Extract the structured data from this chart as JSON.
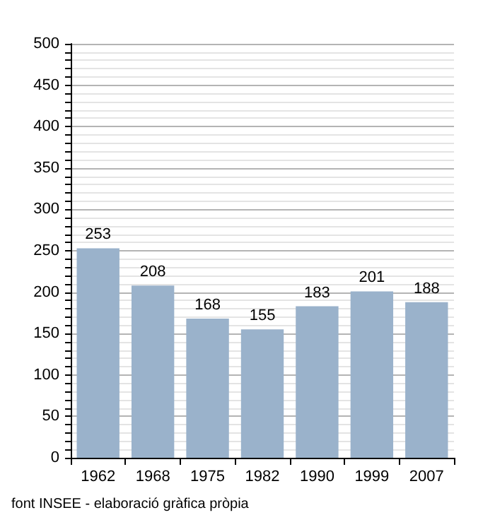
{
  "chart_data": {
    "type": "bar",
    "categories": [
      "1962",
      "1968",
      "1975",
      "1982",
      "1990",
      "1999",
      "2007"
    ],
    "values": [
      253,
      208,
      168,
      155,
      183,
      201,
      188
    ],
    "color": "#9ab2cb",
    "data_labels": true,
    "ylim": [
      0,
      500
    ],
    "yticks": [
      0,
      {
        "value": 10,
        "label": null
      },
      {
        "value": 20,
        "label": null
      },
      {
        "value": 30,
        "label": null
      },
      {
        "value": 40,
        "label": null
      },
      50,
      {
        "value": 60,
        "label": null
      },
      {
        "value": 70,
        "label": null
      },
      {
        "value": 80,
        "label": null
      },
      {
        "value": 90,
        "label": null
      },
      100,
      {
        "value": 110,
        "label": null
      },
      {
        "value": 120,
        "label": null
      },
      {
        "value": 130,
        "label": null
      },
      {
        "value": 140,
        "label": null
      },
      150,
      {
        "value": 160,
        "label": null
      },
      {
        "value": 170,
        "label": null
      },
      {
        "value": 180,
        "label": null
      },
      {
        "value": 190,
        "label": null
      },
      200,
      {
        "value": 210,
        "label": null
      },
      {
        "value": 220,
        "label": null
      },
      {
        "value": 230,
        "label": null
      },
      {
        "value": 240,
        "label": null
      },
      250,
      {
        "value": 260,
        "label": null
      },
      {
        "value": 270,
        "label": null
      },
      {
        "value": 280,
        "label": null
      },
      {
        "value": 290,
        "label": null
      },
      300,
      {
        "value": 310,
        "label": null
      },
      {
        "value": 320,
        "label": null
      },
      {
        "value": 330,
        "label": null
      },
      {
        "value": 340,
        "label": null
      },
      350,
      {
        "value": 360,
        "label": null
      },
      {
        "value": 370,
        "label": null
      },
      {
        "value": 380,
        "label": null
      },
      {
        "value": 390,
        "label": null
      },
      400,
      {
        "value": 410,
        "label": null
      },
      {
        "value": 420,
        "label": null
      },
      {
        "value": 430,
        "label": null
      },
      {
        "value": 440,
        "label": null
      },
      450,
      {
        "value": 460,
        "label": null
      },
      {
        "value": 470,
        "label": null
      },
      {
        "value": 480,
        "label": null
      },
      {
        "value": 490,
        "label": null
      },
      500
    ],
    "grid": "y",
    "annotations": [
      "font INSEE - elaboració gràfica pròpia"
    ]
  }
}
